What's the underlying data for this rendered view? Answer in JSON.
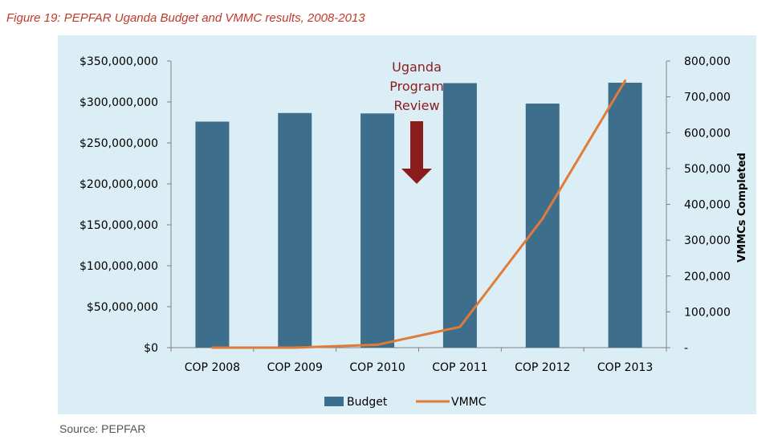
{
  "figure_title": "Figure 19: PEPFAR Uganda Budget and VMMC results, 2008-2013",
  "source": "Source: PEPFAR",
  "chart_data": {
    "type": "bar",
    "title": "",
    "categories": [
      "COP 2008",
      "COP 2009",
      "COP 2010",
      "COP 2011",
      "COP 2012",
      "COP 2013"
    ],
    "series": [
      {
        "name": "Budget",
        "type": "bar",
        "axis": "left",
        "color": "#3d6e8c",
        "values": [
          276000000,
          286500000,
          286000000,
          323000000,
          298000000,
          323500000
        ]
      },
      {
        "name": "VMMC",
        "type": "line",
        "axis": "right",
        "color": "#e07b39",
        "values": [
          0,
          0,
          8000,
          58000,
          360000,
          745000
        ]
      }
    ],
    "y_left": {
      "min": 0,
      "max": 350000000,
      "ticks": [
        "$0",
        "$50,000,000",
        "$100,000,000",
        "$150,000,000",
        "$200,000,000",
        "$250,000,000",
        "$300,000,000",
        "$350,000,000"
      ]
    },
    "y_right": {
      "min": 0,
      "max": 800000,
      "label": "VMMCs Completed",
      "ticks": [
        "-",
        "100,000",
        "200,000",
        "300,000",
        "400,000",
        "500,000",
        "600,000",
        "700,000",
        "800,000"
      ]
    },
    "annotation": {
      "lines": [
        "Uganda",
        "Program",
        "Review"
      ],
      "color": "#8b1c1c"
    },
    "legend": {
      "placement": "bottom",
      "items": [
        "Budget",
        "VMMC"
      ]
    },
    "grid": false
  }
}
